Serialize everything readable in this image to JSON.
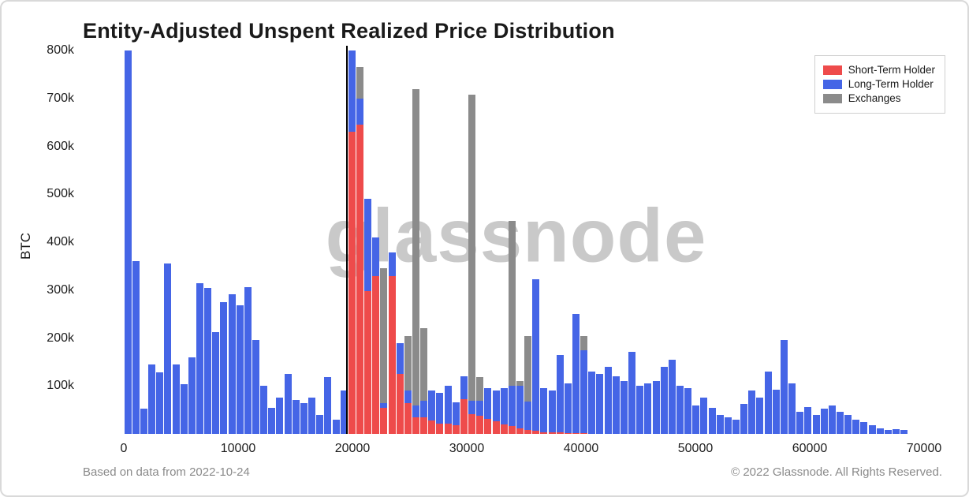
{
  "title": "Entity-Adjusted Unspent Realized Price Distribution",
  "watermark": "glassnode",
  "footer": {
    "left": "Based on data from 2022-10-24",
    "right": "© 2022 Glassnode. All Rights Reserved."
  },
  "colors": {
    "short_term_holder": "#ee4b4b",
    "long_term_holder": "#4565e6",
    "exchanges": "#8b8b8b",
    "price_line": "#000000",
    "watermark": "#c9c9c9"
  },
  "chart_data": {
    "type": "bar",
    "stacked": true,
    "title": "Entity-Adjusted Unspent Realized Price Distribution",
    "xlabel": "",
    "ylabel": "BTC",
    "xlim": [
      0,
      70000
    ],
    "ylim": [
      0,
      800000
    ],
    "grid": false,
    "legend_position": "top-right",
    "bin_width": 700,
    "values_unit": "thousand BTC",
    "price_marker": 19432,
    "x_ticks": [
      0,
      10000,
      20000,
      30000,
      40000,
      50000,
      60000,
      70000
    ],
    "y_tick_values": [
      100000,
      200000,
      300000,
      400000,
      500000,
      600000,
      700000,
      800000
    ],
    "y_ticks": [
      "100k",
      "200k",
      "300k",
      "400k",
      "500k",
      "600k",
      "700k",
      "800k"
    ],
    "categories": [
      0,
      700,
      1400,
      2100,
      2800,
      3500,
      4200,
      4900,
      5600,
      6300,
      7000,
      7700,
      8400,
      9100,
      9800,
      10500,
      11200,
      11900,
      12600,
      13300,
      14000,
      14700,
      15400,
      16100,
      16800,
      17500,
      18200,
      18900,
      19600,
      20300,
      21000,
      21700,
      22400,
      23100,
      23800,
      24500,
      25200,
      25900,
      26600,
      27300,
      28000,
      28700,
      29400,
      30100,
      30800,
      31500,
      32200,
      32900,
      33600,
      34300,
      35000,
      35700,
      36400,
      37100,
      37800,
      38500,
      39200,
      39900,
      40600,
      41300,
      42000,
      42700,
      43400,
      44100,
      44800,
      45500,
      46200,
      46900,
      47600,
      48300,
      49000,
      49700,
      50400,
      51100,
      51800,
      52500,
      53200,
      53900,
      54600,
      55300,
      56000,
      56700,
      57400,
      58100,
      58800,
      59500,
      60200,
      60900,
      61600,
      62300,
      63000,
      63700,
      64400,
      65100,
      65800,
      66500,
      67200,
      67900
    ],
    "series": [
      {
        "name": "Short-Term Holder",
        "color": "#ee4b4b",
        "values": [
          0,
          0,
          0,
          0,
          0,
          0,
          0,
          0,
          0,
          0,
          0,
          0,
          0,
          0,
          0,
          0,
          0,
          0,
          0,
          0,
          0,
          0,
          0,
          0,
          0,
          0,
          0,
          0,
          630,
          645,
          298,
          330,
          55,
          330,
          125,
          65,
          35,
          35,
          28,
          22,
          22,
          18,
          72,
          42,
          38,
          32,
          26,
          20,
          16,
          12,
          8,
          6,
          4,
          3,
          3,
          2,
          2,
          2,
          0,
          0,
          0,
          0,
          0,
          0,
          0,
          0,
          0,
          0,
          0,
          0,
          0,
          0,
          0,
          0,
          0,
          0,
          0,
          0,
          0,
          0,
          0,
          0,
          0,
          0,
          0,
          0,
          0,
          0,
          0,
          0,
          0,
          0,
          0,
          0,
          0,
          0,
          0,
          0
        ]
      },
      {
        "name": "Long-Term Holder",
        "color": "#4565e6",
        "values": [
          800,
          360,
          52,
          145,
          128,
          355,
          145,
          103,
          160,
          315,
          305,
          212,
          275,
          292,
          268,
          307,
          196,
          100,
          55,
          75,
          125,
          70,
          64,
          75,
          40,
          118,
          30,
          90,
          170,
          55,
          192,
          80,
          10,
          48,
          65,
          25,
          25,
          35,
          62,
          63,
          78,
          48,
          48,
          28,
          32,
          63,
          64,
          75,
          84,
          88,
          60,
          316,
          91,
          87,
          162,
          103,
          248,
          173,
          130,
          125,
          140,
          120,
          110,
          172,
          100,
          105,
          110,
          140,
          155,
          100,
          95,
          60,
          75,
          55,
          40,
          35,
          30,
          62,
          90,
          76,
          130,
          92,
          196,
          105,
          46,
          56,
          40,
          52,
          60,
          46,
          40,
          30,
          24,
          18,
          12,
          8,
          10,
          8
        ]
      },
      {
        "name": "Exchanges",
        "color": "#8b8b8b",
        "values": [
          0,
          0,
          0,
          0,
          0,
          0,
          0,
          0,
          0,
          0,
          0,
          0,
          0,
          0,
          0,
          0,
          0,
          0,
          0,
          0,
          0,
          0,
          0,
          0,
          0,
          0,
          0,
          0,
          0,
          65,
          0,
          0,
          280,
          0,
          0,
          115,
          660,
          150,
          0,
          0,
          0,
          0,
          0,
          638,
          48,
          0,
          0,
          0,
          345,
          10,
          137,
          0,
          0,
          0,
          0,
          0,
          0,
          30,
          0,
          0,
          0,
          0,
          0,
          0,
          0,
          0,
          0,
          0,
          0,
          0,
          0,
          0,
          0,
          0,
          0,
          0,
          0,
          0,
          0,
          0,
          0,
          0,
          0,
          0,
          0,
          0,
          0,
          0,
          0,
          0,
          0,
          0,
          0,
          0,
          0,
          0,
          0,
          0
        ]
      }
    ]
  }
}
